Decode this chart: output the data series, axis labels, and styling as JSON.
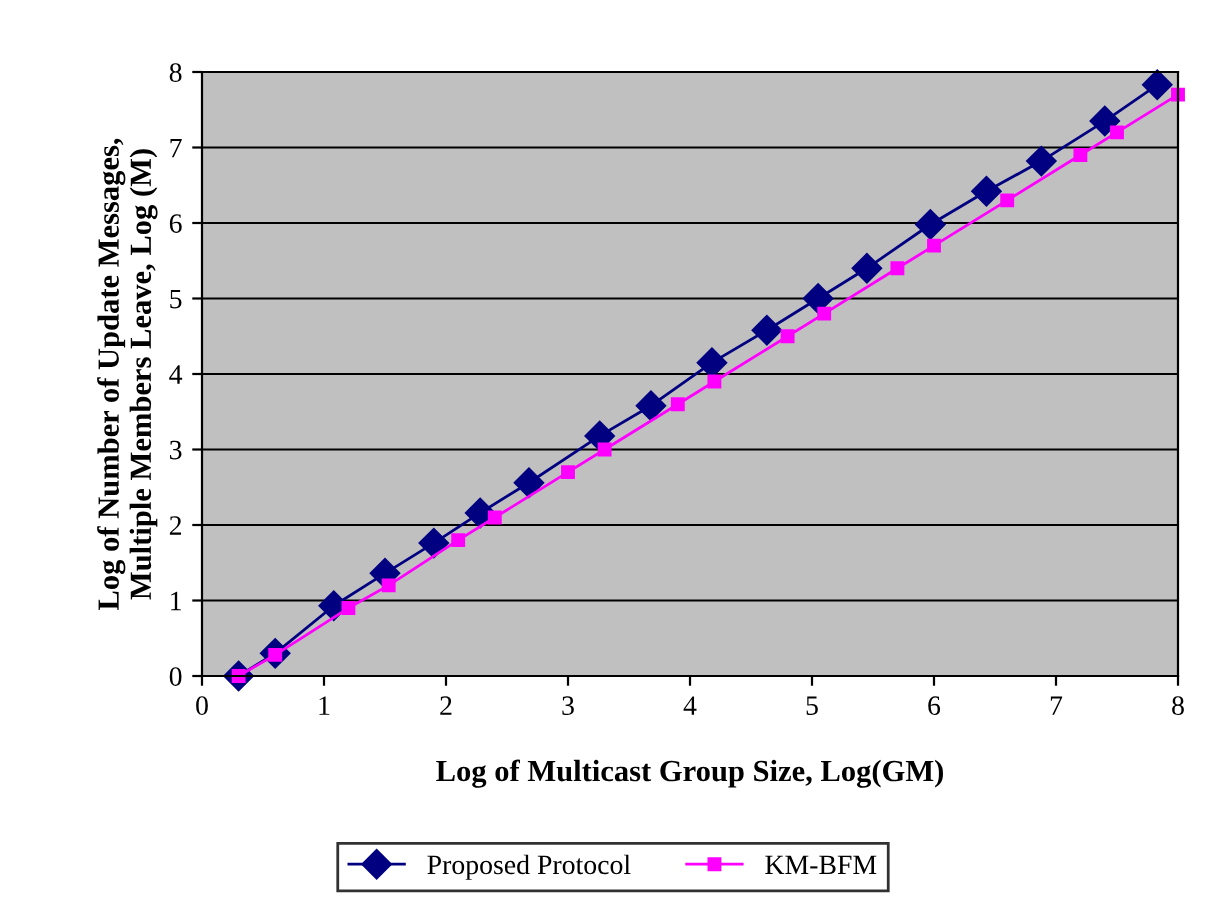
{
  "chart_data": {
    "type": "line",
    "xlabel": "Log of Multicast Group Size, Log(GM)",
    "ylabel": "Log of Number of Update Messages,\nMultiple Members Leave, Log (M)",
    "xlim": [
      0,
      8
    ],
    "ylim": [
      0,
      8
    ],
    "xticks": [
      0,
      1,
      2,
      3,
      4,
      5,
      6,
      7,
      8
    ],
    "yticks": [
      0,
      1,
      2,
      3,
      4,
      5,
      6,
      7,
      8
    ],
    "grid": "y",
    "legend": "bottom",
    "series": [
      {
        "name": "Proposed Protocol",
        "color": "#000080",
        "marker": "diamond",
        "x": [
          0.3,
          0.6,
          1.08,
          1.5,
          1.9,
          2.28,
          2.68,
          3.26,
          3.68,
          4.18,
          4.63,
          5.05,
          5.45,
          5.97,
          6.43,
          6.88,
          7.4,
          7.83
        ],
        "values": [
          0,
          0.3,
          0.93,
          1.36,
          1.76,
          2.16,
          2.56,
          3.18,
          3.58,
          4.15,
          4.58,
          5.0,
          5.4,
          5.98,
          6.42,
          6.82,
          7.35,
          7.83
        ]
      },
      {
        "name": "KM-BFM",
        "color": "#ff00ff",
        "marker": "square",
        "x": [
          0.3,
          0.6,
          1.2,
          1.53,
          2.1,
          2.4,
          3.0,
          3.3,
          3.9,
          4.2,
          4.8,
          5.1,
          5.7,
          6.0,
          6.6,
          7.2,
          7.5,
          8.0
        ],
        "values": [
          0,
          0.28,
          0.9,
          1.2,
          1.8,
          2.1,
          2.7,
          3.0,
          3.6,
          3.9,
          4.5,
          4.8,
          5.4,
          5.7,
          6.3,
          6.9,
          7.2,
          7.7
        ]
      }
    ]
  }
}
